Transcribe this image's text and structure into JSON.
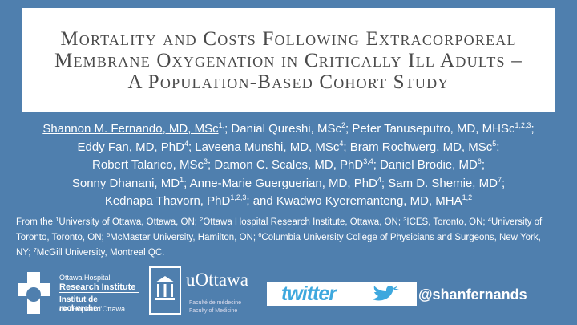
{
  "title": {
    "lines": [
      "Mortality and Costs Following Extracorporeal",
      "Membrane Oxygenation in Critically Ill Adults –",
      "A Population-Based Cohort Study"
    ]
  },
  "authors": {
    "lines": [
      [
        {
          "text": "Shannon M. Fernando, MD, MSc"
        },
        {
          "sup": "1,"
        },
        {
          "text": "; Danial Qureshi, MSc"
        },
        {
          "sup": "2"
        },
        {
          "text": "; Peter Tanuseputro, MD, MHSc"
        },
        {
          "sup": "1,2,3"
        },
        {
          "text": ";"
        }
      ],
      [
        {
          "text": "Eddy Fan, MD, PhD"
        },
        {
          "sup": "4"
        },
        {
          "text": "; Laveena Munshi, MD, MSc"
        },
        {
          "sup": "4"
        },
        {
          "text": "; Bram Rochwerg, MD, MSc"
        },
        {
          "sup": "5"
        },
        {
          "text": ";"
        }
      ],
      [
        {
          "text": "Robert Talarico, MSc"
        },
        {
          "sup": "3"
        },
        {
          "text": "; Damon C. Scales, MD, PhD"
        },
        {
          "sup": "3,4"
        },
        {
          "text": "; Daniel Brodie, MD"
        },
        {
          "sup": "6"
        },
        {
          "text": ";"
        }
      ],
      [
        {
          "text": "Sonny Dhanani, MD"
        },
        {
          "sup": "1"
        },
        {
          "text": "; Anne-Marie Guerguerian, MD, PhD"
        },
        {
          "sup": "4"
        },
        {
          "text": "; Sam D. Shemie, MD"
        },
        {
          "sup": "7"
        },
        {
          "text": ";"
        }
      ],
      [
        {
          "text": "Kednapa Thavorn, PhD"
        },
        {
          "sup": "1,2,3"
        },
        {
          "text": "; and Kwadwo Kyeremanteng, MD, MHA"
        },
        {
          "sup": "1,2"
        }
      ]
    ]
  },
  "affiliations": [
    {
      "text": "From the "
    },
    {
      "sup": "1"
    },
    {
      "text": "University of Ottawa, Ottawa, ON; "
    },
    {
      "sup": "2"
    },
    {
      "text": "Ottawa Hospital Research Institute, Ottawa, ON; "
    },
    {
      "sup": "3"
    },
    {
      "text": "ICES, Toronto, ON; "
    },
    {
      "sup": "4"
    },
    {
      "text": "University of Toronto, Toronto, ON; "
    },
    {
      "sup": "5"
    },
    {
      "text": "McMaster University, Hamilton, ON; "
    },
    {
      "sup": "6"
    },
    {
      "text": "Columbia University College of Physicians and Surgeons, New York, NY; "
    },
    {
      "sup": "7"
    },
    {
      "text": "McGill University, Montreal QC."
    }
  ],
  "logos": {
    "ohri": [
      "Ottawa Hospital",
      "Research Institute",
      "Institut de recherche",
      "de l'Hôpital d'Ottawa"
    ],
    "uottawa": [
      "uOttawa",
      "Faculté de médecine",
      "Faculty of Medicine"
    ],
    "twitter": "twitter"
  },
  "handle": "@shanfernands"
}
